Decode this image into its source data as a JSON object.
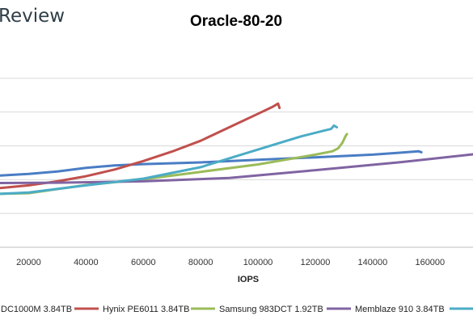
{
  "brand": {
    "text": "Review"
  },
  "chart_data": {
    "type": "line",
    "title": "Oracle-80-20",
    "xlabel": "IOPS",
    "ylabel": "",
    "xlim": [
      10000,
      175000
    ],
    "ylim": [
      0,
      6
    ],
    "x_ticks": [
      20000,
      40000,
      60000,
      80000,
      100000,
      120000,
      140000,
      160000
    ],
    "x_tick_labels": [
      "20000",
      "40000",
      "60000",
      "80000",
      "100000",
      "120000",
      "140000",
      "160000"
    ],
    "y_gridlines": [
      1,
      2,
      3,
      4,
      5
    ],
    "grid": true,
    "legend_placement": "bottom",
    "series": [
      {
        "name": "DC1000M 3.84TB",
        "color": "#4a7dc4",
        "x": [
          10000,
          20000,
          30000,
          40000,
          50000,
          60000,
          80000,
          100000,
          120000,
          140000,
          150000,
          156000,
          157000
        ],
        "y": [
          2.12,
          2.17,
          2.24,
          2.35,
          2.42,
          2.46,
          2.51,
          2.59,
          2.66,
          2.74,
          2.8,
          2.84,
          2.81
        ]
      },
      {
        "name": "Hynix PE6011 3.84TB",
        "color": "#c0504d",
        "x": [
          10000,
          20000,
          30000,
          40000,
          50000,
          60000,
          70000,
          80000,
          90000,
          100000,
          105000,
          107000,
          107500
        ],
        "y": [
          1.75,
          1.83,
          1.95,
          2.1,
          2.3,
          2.55,
          2.83,
          3.15,
          3.55,
          3.95,
          4.15,
          4.25,
          4.12
        ]
      },
      {
        "name": "Samsung 983DCT 1.92TB",
        "color": "#9bbb59",
        "x": [
          10000,
          20000,
          30000,
          40000,
          60000,
          80000,
          100000,
          120000,
          126000,
          128000,
          129500,
          130500,
          131000
        ],
        "y": [
          1.58,
          1.6,
          1.72,
          1.84,
          2.01,
          2.23,
          2.45,
          2.74,
          2.84,
          2.93,
          3.1,
          3.28,
          3.35
        ]
      },
      {
        "name": "Memblaze 910 3.84TB",
        "color": "#8064a2",
        "x": [
          10000,
          30000,
          60000,
          90000,
          120000,
          150000,
          175000
        ],
        "y": [
          1.9,
          1.91,
          1.95,
          2.05,
          2.28,
          2.52,
          2.75
        ]
      },
      {
        "name": "",
        "color": "#4bacc6",
        "x": [
          10000,
          20000,
          40000,
          60000,
          80000,
          100000,
          115000,
          123000,
          125500,
          126500,
          127500
        ],
        "y": [
          1.58,
          1.62,
          1.83,
          2.03,
          2.37,
          2.89,
          3.28,
          3.45,
          3.5,
          3.6,
          3.55
        ]
      }
    ]
  }
}
